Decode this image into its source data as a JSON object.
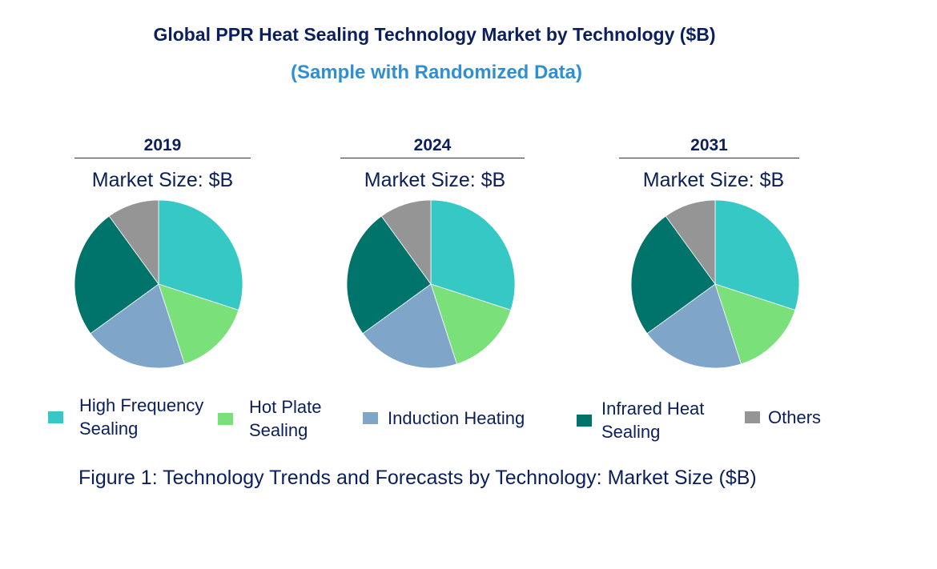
{
  "title": "Global PPR Heat Sealing Technology Market by Technology ($B)",
  "subtitle": "(Sample with Randomized Data)",
  "caption": "Figure 1: Technology Trends and Forecasts by Technology: Market Size ($B)",
  "chart_data": [
    {
      "type": "pie",
      "title": "2019",
      "subtitle": "Market Size: $B",
      "categories": [
        "High Frequency Sealing",
        "Hot Plate Sealing",
        "Induction Heating",
        "Infrared Heat Sealing",
        "Others"
      ],
      "values": [
        30,
        15,
        20,
        25,
        10
      ]
    },
    {
      "type": "pie",
      "title": "2024",
      "subtitle": "Market Size: $B",
      "categories": [
        "High Frequency Sealing",
        "Hot Plate Sealing",
        "Induction Heating",
        "Infrared Heat Sealing",
        "Others"
      ],
      "values": [
        30,
        15,
        20,
        25,
        10
      ]
    },
    {
      "type": "pie",
      "title": "2031",
      "subtitle": "Market Size: $B",
      "categories": [
        "High Frequency Sealing",
        "Hot Plate Sealing",
        "Induction Heating",
        "Infrared Heat Sealing",
        "Others"
      ],
      "values": [
        30,
        15,
        20,
        25,
        10
      ]
    }
  ],
  "legend": [
    {
      "label": "High Frequency Sealing",
      "color": "#36c8c4"
    },
    {
      "label": "Hot Plate Sealing",
      "color": "#7ae07a"
    },
    {
      "label": "Induction Heating",
      "color": "#7fa5c9"
    },
    {
      "label": "Infrared Heat Sealing",
      "color": "#00736a"
    },
    {
      "label": "Others",
      "color": "#959595"
    }
  ]
}
